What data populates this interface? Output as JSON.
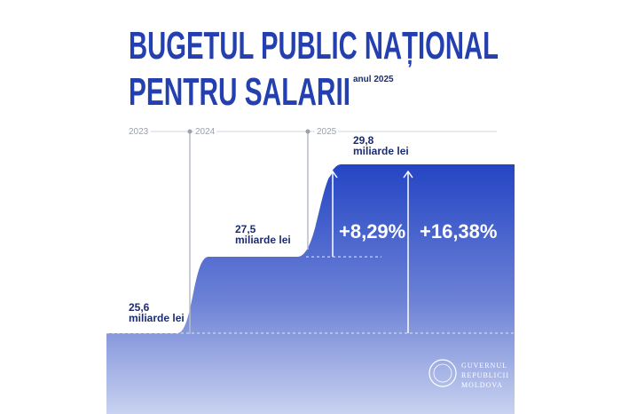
{
  "chart_data": {
    "type": "step-area",
    "title": [
      "BUGETUL PUBLIC NAȚIONAL",
      "PENTRU SALARII"
    ],
    "subtitle": "anul 2025",
    "categories": [
      "2023",
      "2024",
      "2025"
    ],
    "values": [
      25.6,
      27.5,
      29.8
    ],
    "value_labels": [
      "25,6",
      "27,5",
      "29,8"
    ],
    "unit": "miliarde lei",
    "annotations": [
      "+8,29%",
      "+16,38%"
    ],
    "color": "#2445c4",
    "logo": [
      "GUVERNUL",
      "REPUBLICII",
      "MOLDOVA"
    ]
  }
}
